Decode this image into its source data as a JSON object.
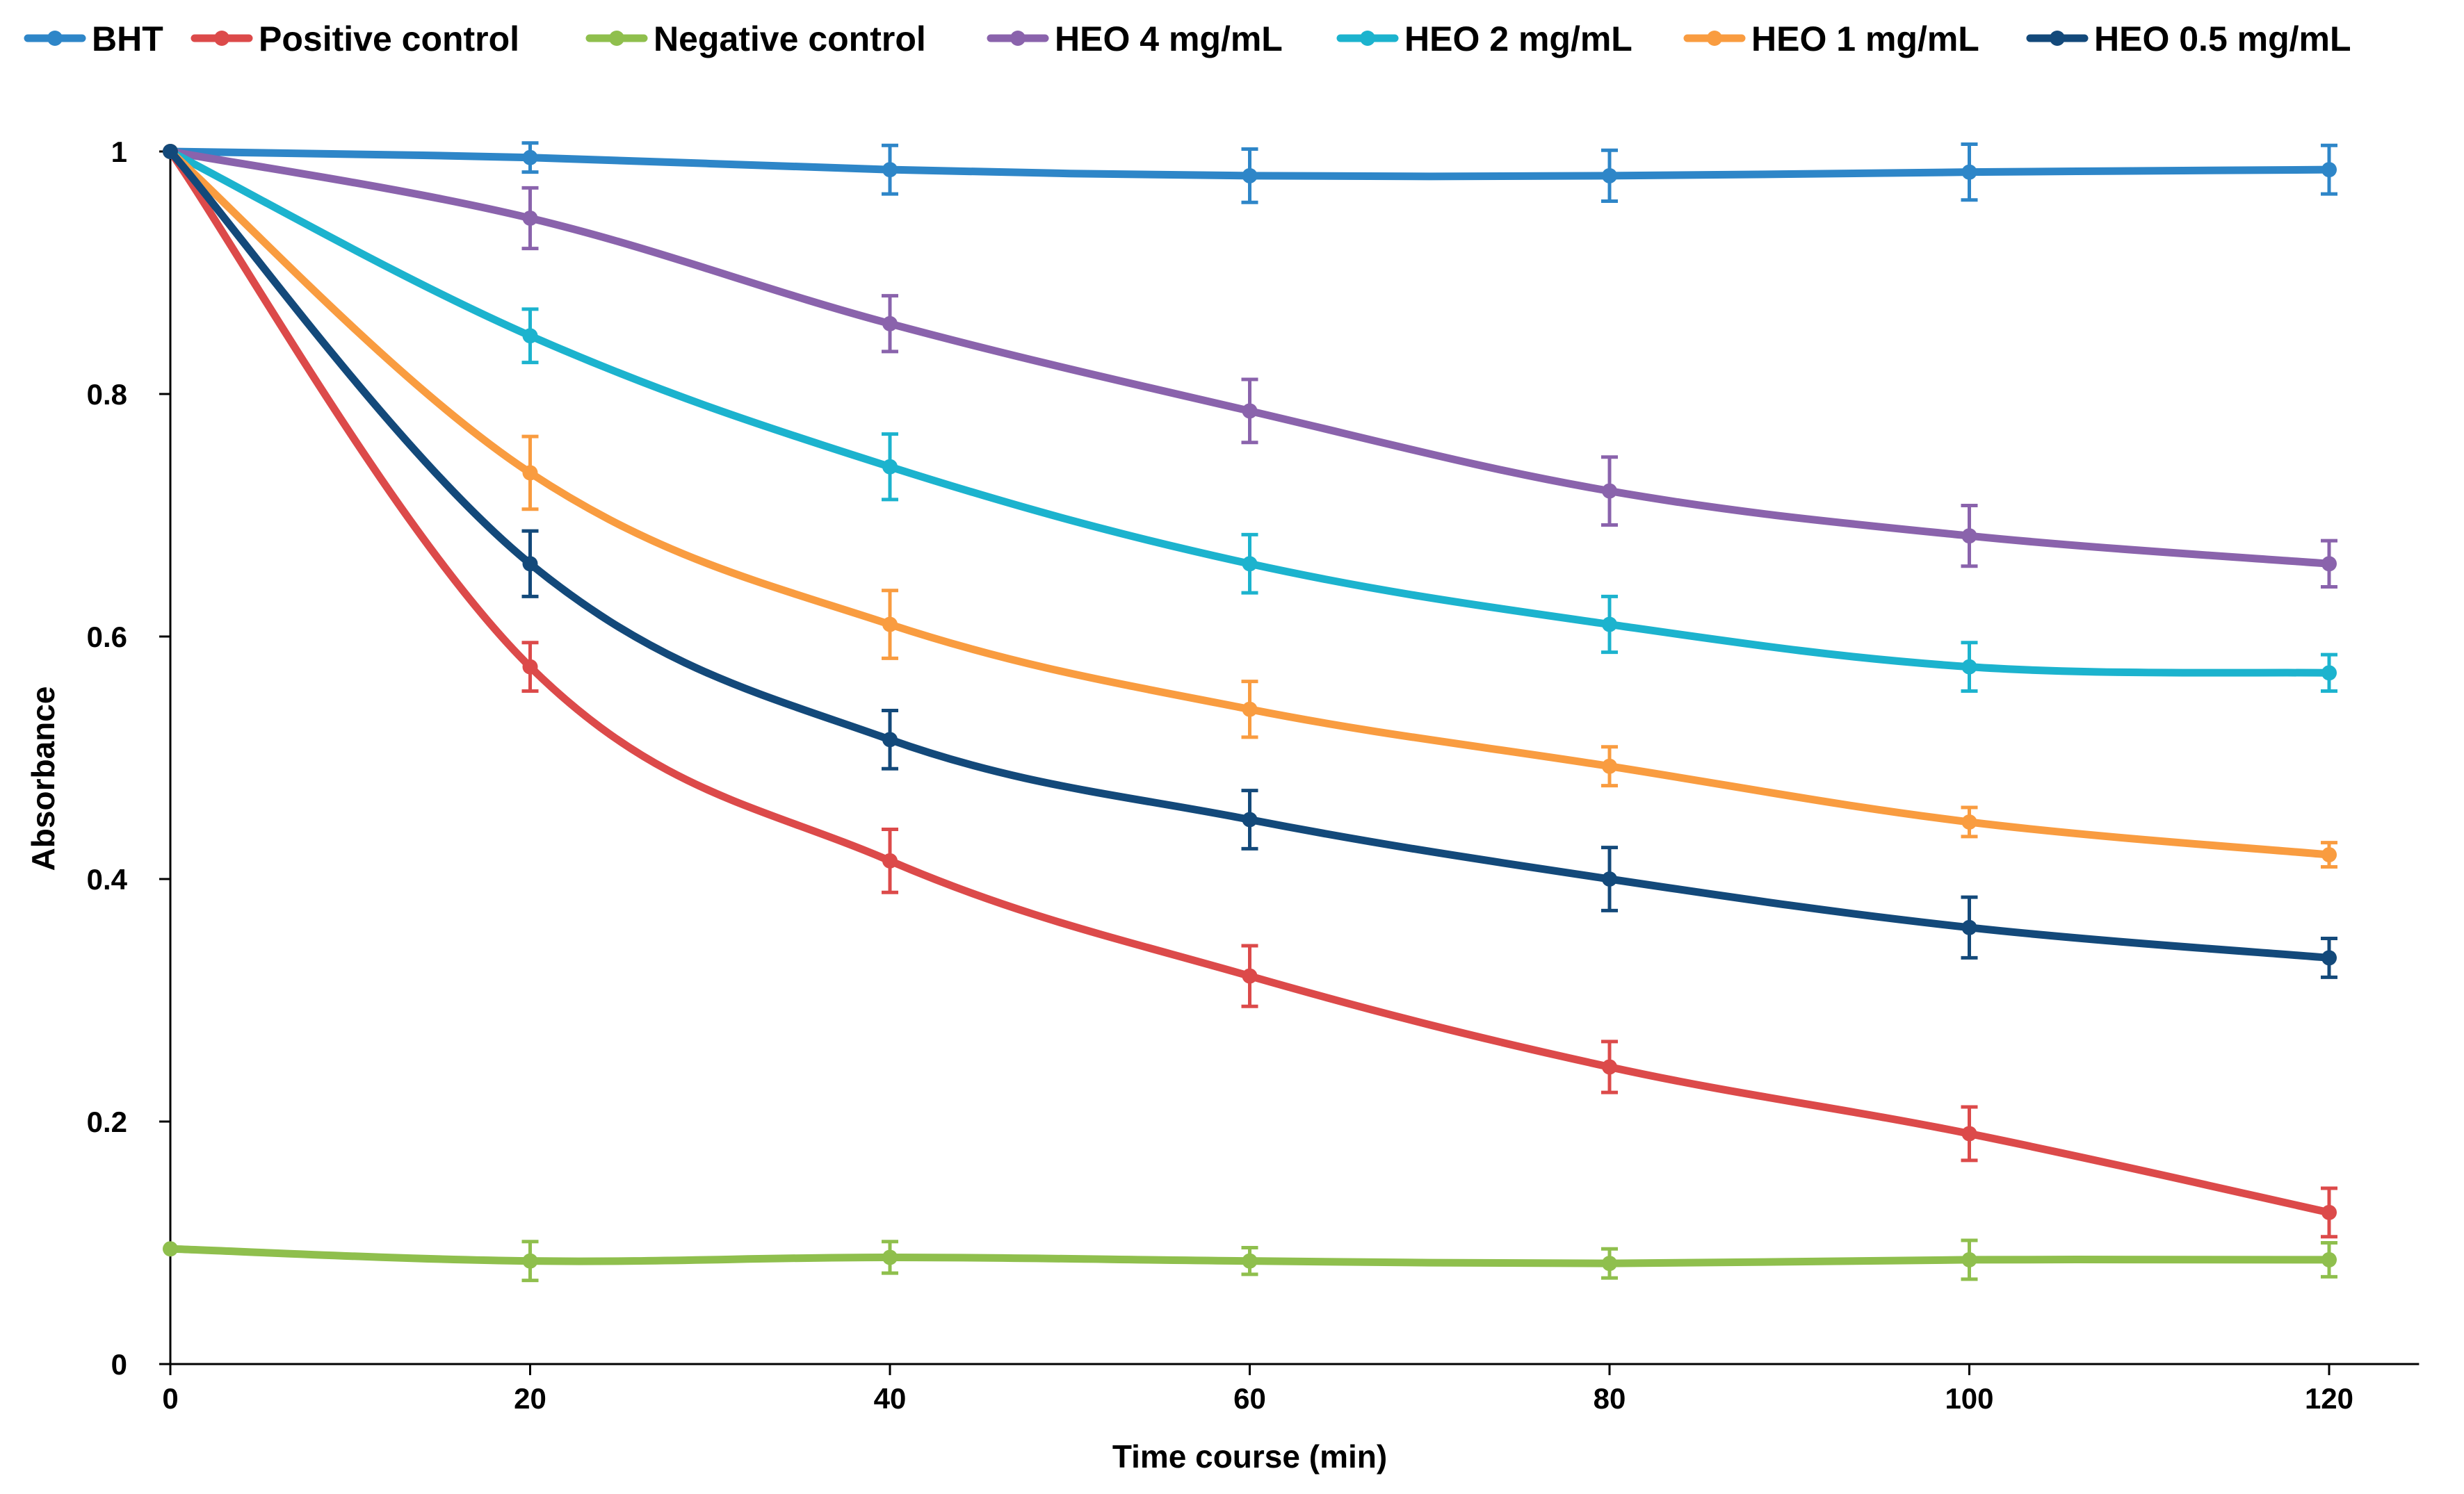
{
  "chart_data": {
    "type": "line",
    "title": "",
    "xlabel": "Time course (min)",
    "ylabel": "Absorbance",
    "x": [
      0,
      20,
      40,
      60,
      80,
      100,
      120
    ],
    "x_ticks": [
      0,
      20,
      40,
      60,
      80,
      100,
      120
    ],
    "y_ticks": [
      0,
      0.2,
      0.4,
      0.6,
      0.8,
      1
    ],
    "xlim": [
      0,
      125
    ],
    "ylim": [
      0,
      1
    ],
    "legend_position": "top",
    "grid": false,
    "series": [
      {
        "name": "BHT",
        "color": "#2E86C8",
        "values": [
          1.0,
          0.995,
          0.985,
          0.98,
          0.98,
          0.983,
          0.985
        ],
        "errors": [
          0,
          0.012,
          0.02,
          0.022,
          0.021,
          0.023,
          0.02
        ]
      },
      {
        "name": "Positive control",
        "color": "#DC4A4A",
        "values": [
          1.0,
          0.575,
          0.415,
          0.32,
          0.245,
          0.19,
          0.125
        ],
        "errors": [
          0,
          0.02,
          0.026,
          0.025,
          0.021,
          0.022,
          0.02
        ]
      },
      {
        "name": "Negative control",
        "color": "#8FBF4D",
        "values": [
          0.095,
          0.085,
          0.088,
          0.085,
          0.083,
          0.086,
          0.086
        ],
        "errors": [
          0,
          0.016,
          0.013,
          0.011,
          0.012,
          0.016,
          0.014
        ]
      },
      {
        "name": "HEO 4 mg/mL",
        "color": "#8A63AC",
        "values": [
          1.0,
          0.945,
          0.858,
          0.786,
          0.72,
          0.683,
          0.66
        ],
        "errors": [
          0,
          0.025,
          0.023,
          0.026,
          0.028,
          0.025,
          0.019
        ]
      },
      {
        "name": "HEO 2 mg/mL",
        "color": "#1CB3CE",
        "values": [
          1.0,
          0.848,
          0.74,
          0.66,
          0.61,
          0.575,
          0.57
        ],
        "errors": [
          0,
          0.022,
          0.027,
          0.024,
          0.023,
          0.02,
          0.015
        ]
      },
      {
        "name": "HEO 1 mg/mL",
        "color": "#F99C40",
        "values": [
          1.0,
          0.735,
          0.61,
          0.54,
          0.493,
          0.447,
          0.42
        ],
        "errors": [
          0,
          0.03,
          0.028,
          0.023,
          0.016,
          0.012,
          0.01
        ]
      },
      {
        "name": "HEO 0.5 mg/mL",
        "color": "#13497A",
        "values": [
          1.0,
          0.66,
          0.515,
          0.449,
          0.4,
          0.36,
          0.335
        ],
        "errors": [
          0,
          0.027,
          0.024,
          0.024,
          0.026,
          0.025,
          0.016
        ]
      }
    ]
  }
}
